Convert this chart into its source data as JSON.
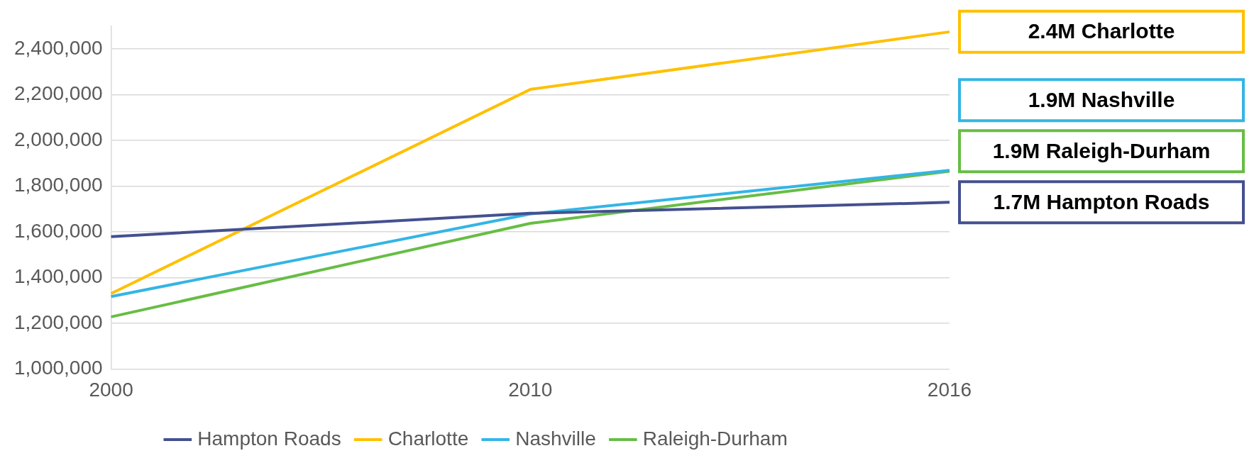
{
  "chart_data": {
    "type": "line",
    "categories": [
      "2000",
      "2010",
      "2016"
    ],
    "series": [
      {
        "name": "Hampton Roads",
        "color": "#44508f",
        "values": [
          1579000,
          1681000,
          1729000
        ]
      },
      {
        "name": "Charlotte",
        "color": "#ffc000",
        "values": [
          1330000,
          2223000,
          2475000
        ]
      },
      {
        "name": "Nashville",
        "color": "#33b5e5",
        "values": [
          1317000,
          1678000,
          1869000
        ]
      },
      {
        "name": "Raleigh-Durham",
        "color": "#67bd45",
        "values": [
          1228000,
          1637000,
          1865000
        ]
      }
    ],
    "ylim": [
      1000000,
      2500000
    ],
    "yticks": [
      {
        "value": 1000000,
        "label": "1,000,000"
      },
      {
        "value": 1200000,
        "label": "1,200,000"
      },
      {
        "value": 1400000,
        "label": "1,400,000"
      },
      {
        "value": 1600000,
        "label": "1,600,000"
      },
      {
        "value": 1800000,
        "label": "1,800,000"
      },
      {
        "value": 2000000,
        "label": "2,000,000"
      },
      {
        "value": 2200000,
        "label": "2,200,000"
      },
      {
        "value": 2400000,
        "label": "2,400,000"
      }
    ],
    "grid": "y",
    "legend": "bottom",
    "marker": "none",
    "line_style": "solid",
    "annotations": [
      "1.7M Hampton Roads",
      "2.4M Charlotte",
      "1.9M Nashville",
      "1.9M Raleigh-Durham"
    ]
  }
}
